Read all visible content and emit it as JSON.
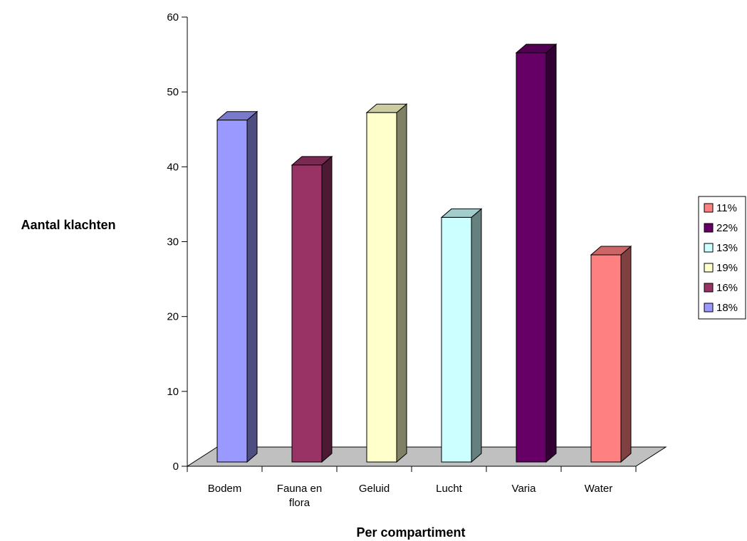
{
  "chart_data": {
    "type": "bar",
    "title": "",
    "xlabel": "Per compartiment",
    "ylabel": "Aantal klachten",
    "categories": [
      {
        "lines": [
          "Bodem"
        ]
      },
      {
        "lines": [
          "Fauna en",
          "flora"
        ]
      },
      {
        "lines": [
          "Geluid"
        ]
      },
      {
        "lines": [
          "Lucht"
        ]
      },
      {
        "lines": [
          "Varia"
        ]
      },
      {
        "lines": [
          "Water"
        ]
      }
    ],
    "values": [
      47,
      41,
      48,
      34,
      56,
      29
    ],
    "colors": [
      "#9999ff",
      "#993366",
      "#ffffcc",
      "#ccffff",
      "#660066",
      "#ff8080"
    ],
    "ylim": [
      0,
      60
    ],
    "yticks": [
      0,
      10,
      20,
      30,
      40,
      50,
      60
    ],
    "grid": false,
    "three_d": true,
    "legend": {
      "placement": "right",
      "entries": [
        {
          "label": "11%",
          "color": "#ff8080"
        },
        {
          "label": "22%",
          "color": "#660066"
        },
        {
          "label": "13%",
          "color": "#ccffff"
        },
        {
          "label": "19%",
          "color": "#ffffcc"
        },
        {
          "label": "16%",
          "color": "#993366"
        },
        {
          "label": "18%",
          "color": "#9999ff"
        }
      ]
    },
    "floor_color": "#c0c0c0"
  }
}
